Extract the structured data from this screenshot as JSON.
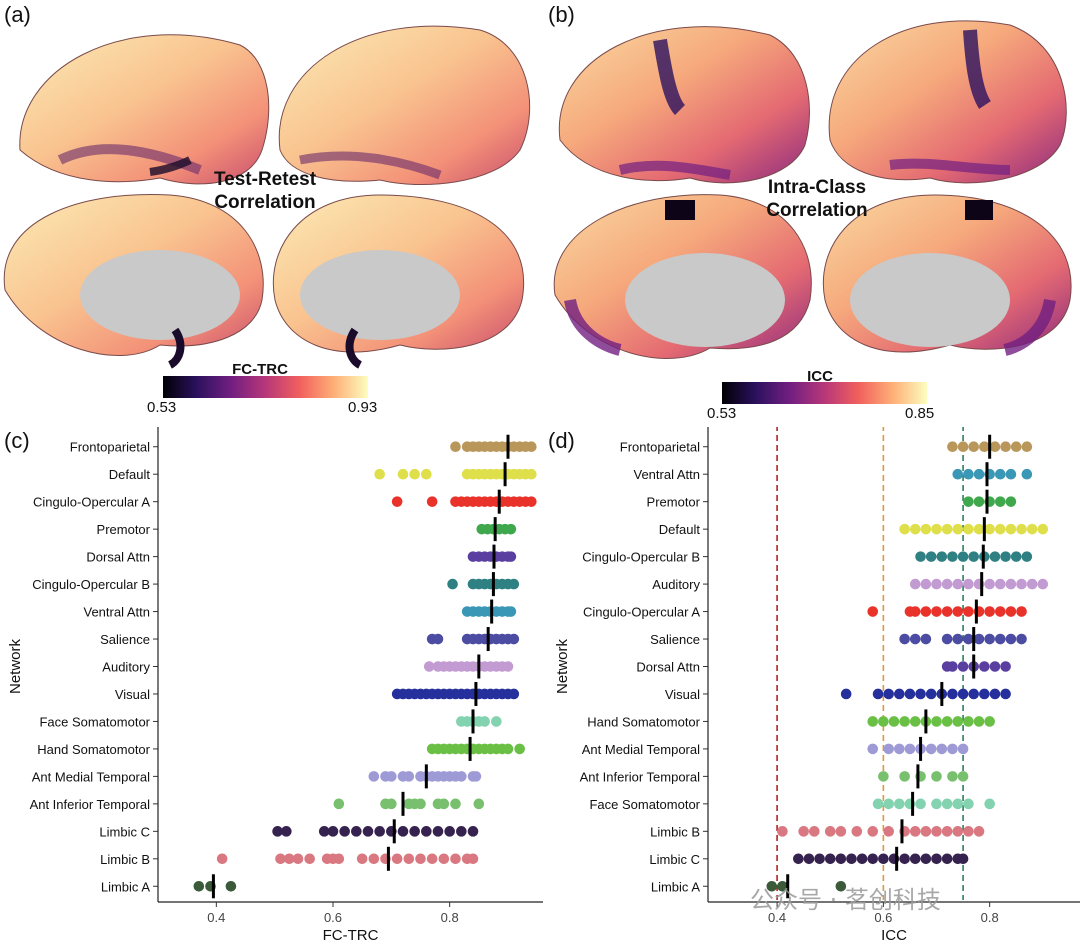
{
  "panels": {
    "a": {
      "letter": "(a)",
      "title_line1": "Test-Retest",
      "title_line2": "Correlation",
      "colorbar_label": "FC-TRC",
      "cbar_min": "0.53",
      "cbar_max": "0.93"
    },
    "b": {
      "letter": "(b)",
      "title_line1": "Intra-Class",
      "title_line2": "Correlation",
      "colorbar_label": "ICC",
      "cbar_min": "0.53",
      "cbar_max": "0.85"
    },
    "c": {
      "letter": "(c)"
    },
    "d": {
      "letter": "(d)"
    }
  },
  "watermark": "公众号 · 茗创科技",
  "chart_data": [
    {
      "id": "c",
      "type": "scatter",
      "xlabel": "FC-TRC",
      "ylabel": "Network",
      "xlim": [
        0.3,
        0.96
      ],
      "xticks": [
        0.4,
        0.6,
        0.8
      ],
      "xtick_labels": [
        "0.4",
        "0.6",
        "0.8"
      ],
      "grid": false,
      "reference_lines": [],
      "series": [
        {
          "name": "Frontoparietal",
          "color": "#b9975b",
          "median": 0.9,
          "points": [
            0.81,
            0.83,
            0.84,
            0.85,
            0.86,
            0.87,
            0.88,
            0.89,
            0.9,
            0.91,
            0.92,
            0.93,
            0.94
          ]
        },
        {
          "name": "Default",
          "color": "#dfdf4b",
          "median": 0.895,
          "points": [
            0.68,
            0.72,
            0.74,
            0.76,
            0.83,
            0.84,
            0.85,
            0.86,
            0.87,
            0.88,
            0.89,
            0.9,
            0.91,
            0.92,
            0.93,
            0.94
          ]
        },
        {
          "name": "Cingulo-Opercular A",
          "color": "#e8322a",
          "median": 0.885,
          "points": [
            0.71,
            0.77,
            0.81,
            0.82,
            0.83,
            0.84,
            0.85,
            0.86,
            0.87,
            0.88,
            0.89,
            0.9,
            0.91,
            0.92,
            0.93,
            0.94
          ]
        },
        {
          "name": "Premotor",
          "color": "#3fa84c",
          "median": 0.878,
          "points": [
            0.855,
            0.865,
            0.875,
            0.885,
            0.895,
            0.905
          ]
        },
        {
          "name": "Dorsal Attn",
          "color": "#5a3fa0",
          "median": 0.876,
          "points": [
            0.84,
            0.85,
            0.86,
            0.87,
            0.88,
            0.89,
            0.9,
            0.905
          ]
        },
        {
          "name": "Cingulo-Opercular B",
          "color": "#2e8083",
          "median": 0.875,
          "points": [
            0.805,
            0.84,
            0.85,
            0.86,
            0.87,
            0.88,
            0.89,
            0.9,
            0.91
          ]
        },
        {
          "name": "Ventral Attn",
          "color": "#3a97b5",
          "median": 0.872,
          "points": [
            0.83,
            0.84,
            0.85,
            0.86,
            0.87,
            0.88,
            0.89,
            0.9,
            0.905
          ]
        },
        {
          "name": "Salience",
          "color": "#4b4ca2",
          "median": 0.866,
          "points": [
            0.77,
            0.78,
            0.83,
            0.84,
            0.85,
            0.86,
            0.87,
            0.88,
            0.89,
            0.9,
            0.91
          ]
        },
        {
          "name": "Auditory",
          "color": "#c39bd3",
          "median": 0.85,
          "points": [
            0.765,
            0.78,
            0.79,
            0.8,
            0.81,
            0.82,
            0.83,
            0.84,
            0.85,
            0.86,
            0.87,
            0.88,
            0.89,
            0.9
          ]
        },
        {
          "name": "Visual",
          "color": "#25309c",
          "median": 0.845,
          "points": [
            0.71,
            0.72,
            0.73,
            0.74,
            0.75,
            0.76,
            0.77,
            0.78,
            0.79,
            0.8,
            0.81,
            0.82,
            0.83,
            0.84,
            0.85,
            0.86,
            0.87,
            0.88,
            0.89,
            0.9,
            0.91
          ]
        },
        {
          "name": "Face Somatomotor",
          "color": "#84d3b0",
          "median": 0.84,
          "points": [
            0.82,
            0.83,
            0.84,
            0.85,
            0.86,
            0.88
          ]
        },
        {
          "name": "Hand Somatomotor",
          "color": "#6abf45",
          "median": 0.835,
          "points": [
            0.77,
            0.78,
            0.79,
            0.8,
            0.81,
            0.82,
            0.83,
            0.84,
            0.85,
            0.86,
            0.87,
            0.88,
            0.89,
            0.9,
            0.92
          ]
        },
        {
          "name": "Ant Medial Temporal",
          "color": "#9e9ad6",
          "median": 0.76,
          "points": [
            0.67,
            0.69,
            0.7,
            0.72,
            0.73,
            0.75,
            0.76,
            0.77,
            0.78,
            0.79,
            0.8,
            0.81,
            0.82,
            0.84,
            0.845
          ]
        },
        {
          "name": "Ant Inferior Temporal",
          "color": "#79c06e",
          "median": 0.72,
          "points": [
            0.61,
            0.69,
            0.7,
            0.73,
            0.74,
            0.75,
            0.78,
            0.79,
            0.81,
            0.85
          ]
        },
        {
          "name": "Limbic C",
          "color": "#35224f",
          "median": 0.705,
          "points": [
            0.505,
            0.52,
            0.585,
            0.6,
            0.62,
            0.64,
            0.66,
            0.68,
            0.7,
            0.72,
            0.74,
            0.76,
            0.78,
            0.8,
            0.82,
            0.84
          ]
        },
        {
          "name": "Limbic B",
          "color": "#d97880",
          "median": 0.695,
          "points": [
            0.41,
            0.51,
            0.525,
            0.54,
            0.56,
            0.59,
            0.6,
            0.61,
            0.65,
            0.67,
            0.69,
            0.71,
            0.73,
            0.75,
            0.77,
            0.79,
            0.81,
            0.83,
            0.84
          ]
        },
        {
          "name": "Limbic A",
          "color": "#3a5a3a",
          "median": 0.395,
          "points": [
            0.37,
            0.39,
            0.425
          ]
        }
      ]
    },
    {
      "id": "d",
      "type": "scatter",
      "xlabel": "ICC",
      "ylabel": "Network",
      "xlim": [
        0.27,
        0.97
      ],
      "xticks": [
        0.4,
        0.6,
        0.8
      ],
      "xtick_labels": [
        "0.4",
        "0.6",
        "0.8"
      ],
      "grid": false,
      "reference_lines": [
        {
          "x": 0.4,
          "color": "#b22222"
        },
        {
          "x": 0.6,
          "color": "#e3963a"
        },
        {
          "x": 0.75,
          "color": "#2e7d5b"
        }
      ],
      "series": [
        {
          "name": "Frontoparietal",
          "color": "#b9975b",
          "median": 0.8,
          "points": [
            0.73,
            0.75,
            0.77,
            0.79,
            0.81,
            0.83,
            0.85,
            0.87
          ]
        },
        {
          "name": "Ventral Attn",
          "color": "#3a97b5",
          "median": 0.795,
          "points": [
            0.74,
            0.76,
            0.78,
            0.8,
            0.82,
            0.84,
            0.87
          ]
        },
        {
          "name": "Premotor",
          "color": "#3fa84c",
          "median": 0.795,
          "points": [
            0.76,
            0.78,
            0.8,
            0.82,
            0.84
          ]
        },
        {
          "name": "Default",
          "color": "#dfdf4b",
          "median": 0.79,
          "points": [
            0.64,
            0.66,
            0.68,
            0.7,
            0.72,
            0.74,
            0.76,
            0.78,
            0.8,
            0.82,
            0.84,
            0.86,
            0.88,
            0.9
          ]
        },
        {
          "name": "Cingulo-Opercular B",
          "color": "#2e8083",
          "median": 0.788,
          "points": [
            0.67,
            0.69,
            0.71,
            0.73,
            0.75,
            0.77,
            0.79,
            0.81,
            0.83,
            0.85,
            0.87
          ]
        },
        {
          "name": "Auditory",
          "color": "#c39bd3",
          "median": 0.785,
          "points": [
            0.66,
            0.68,
            0.7,
            0.72,
            0.74,
            0.76,
            0.78,
            0.8,
            0.82,
            0.84,
            0.86,
            0.88,
            0.9
          ]
        },
        {
          "name": "Cingulo-Opercular A",
          "color": "#e8322a",
          "median": 0.775,
          "points": [
            0.58,
            0.65,
            0.66,
            0.68,
            0.7,
            0.72,
            0.74,
            0.76,
            0.78,
            0.8,
            0.82,
            0.84,
            0.86
          ]
        },
        {
          "name": "Salience",
          "color": "#4b4ca2",
          "median": 0.77,
          "points": [
            0.64,
            0.66,
            0.68,
            0.72,
            0.74,
            0.76,
            0.78,
            0.8,
            0.82,
            0.84,
            0.86
          ]
        },
        {
          "name": "Dorsal Attn",
          "color": "#5a3fa0",
          "median": 0.77,
          "points": [
            0.72,
            0.73,
            0.75,
            0.77,
            0.79,
            0.81,
            0.83
          ]
        },
        {
          "name": "Visual",
          "color": "#25309c",
          "median": 0.71,
          "points": [
            0.53,
            0.59,
            0.61,
            0.63,
            0.65,
            0.67,
            0.69,
            0.71,
            0.73,
            0.75,
            0.77,
            0.79,
            0.81,
            0.83
          ]
        },
        {
          "name": "Hand Somatomotor",
          "color": "#6abf45",
          "median": 0.68,
          "points": [
            0.58,
            0.6,
            0.62,
            0.64,
            0.66,
            0.68,
            0.7,
            0.72,
            0.74,
            0.76,
            0.78,
            0.8
          ]
        },
        {
          "name": "Ant Medial Temporal",
          "color": "#9e9ad6",
          "median": 0.67,
          "points": [
            0.58,
            0.61,
            0.63,
            0.65,
            0.67,
            0.69,
            0.71,
            0.73,
            0.75
          ]
        },
        {
          "name": "Ant Inferior Temporal",
          "color": "#79c06e",
          "median": 0.665,
          "points": [
            0.6,
            0.64,
            0.67,
            0.7,
            0.73,
            0.75
          ]
        },
        {
          "name": "Face Somatomotor",
          "color": "#84d3b0",
          "median": 0.655,
          "points": [
            0.59,
            0.61,
            0.63,
            0.65,
            0.67,
            0.7,
            0.72,
            0.74,
            0.76,
            0.8
          ]
        },
        {
          "name": "Limbic B",
          "color": "#d97880",
          "median": 0.635,
          "points": [
            0.41,
            0.45,
            0.47,
            0.5,
            0.52,
            0.55,
            0.58,
            0.61,
            0.64,
            0.66,
            0.68,
            0.7,
            0.72,
            0.74,
            0.76,
            0.78
          ]
        },
        {
          "name": "Limbic C",
          "color": "#35224f",
          "median": 0.625,
          "points": [
            0.44,
            0.46,
            0.48,
            0.5,
            0.52,
            0.54,
            0.56,
            0.58,
            0.6,
            0.62,
            0.64,
            0.66,
            0.68,
            0.7,
            0.72,
            0.74,
            0.75
          ]
        },
        {
          "name": "Limbic A",
          "color": "#3a5a3a",
          "median": 0.42,
          "points": [
            0.39,
            0.41,
            0.52
          ]
        }
      ]
    }
  ]
}
